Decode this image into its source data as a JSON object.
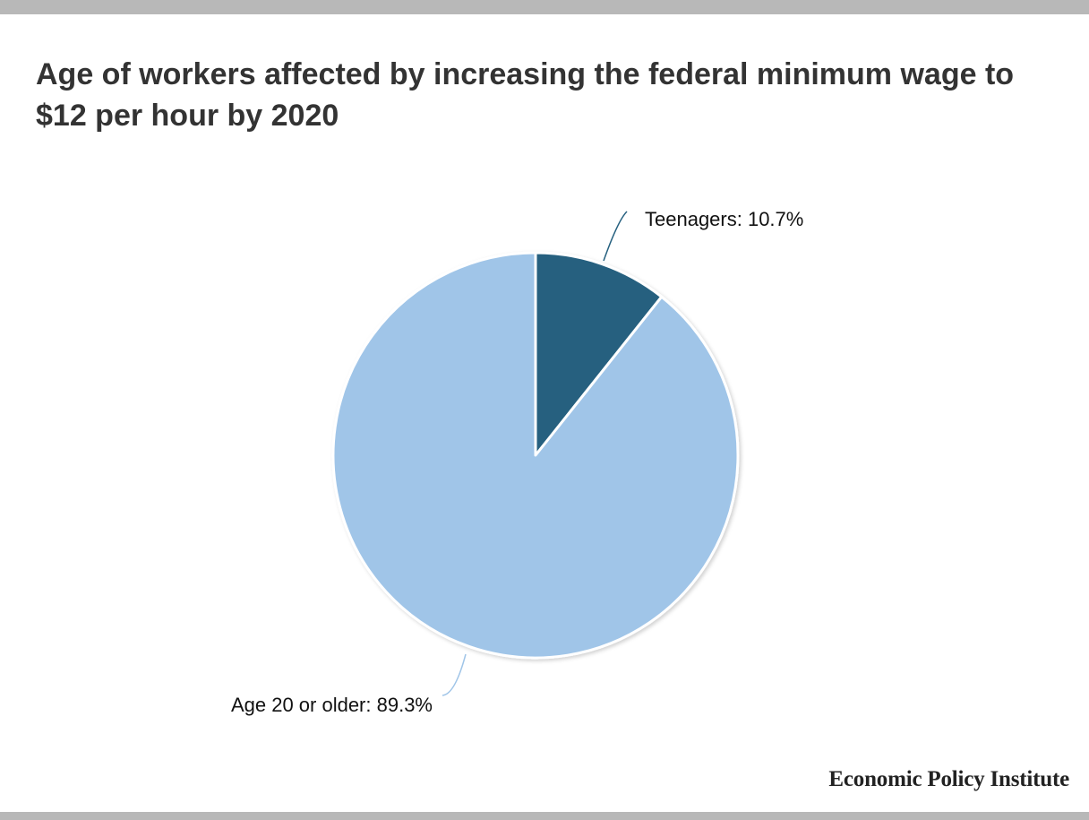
{
  "chart_data": {
    "type": "pie",
    "title": "Age of workers affected by increasing the federal minimum wage to $12 per hour by 2020",
    "slices": [
      {
        "label": "Teenagers",
        "value": 10.7,
        "display": "Teenagers: 10.7%",
        "color": "#25607f"
      },
      {
        "label": "Age 20 or older",
        "value": 89.3,
        "display": "Age 20 or older: 89.3%",
        "color": "#a0c5e8"
      }
    ],
    "legend": "none",
    "start_angle": "12 o'clock",
    "direction": "clockwise"
  },
  "source": {
    "name": "Economic Policy Institute"
  }
}
